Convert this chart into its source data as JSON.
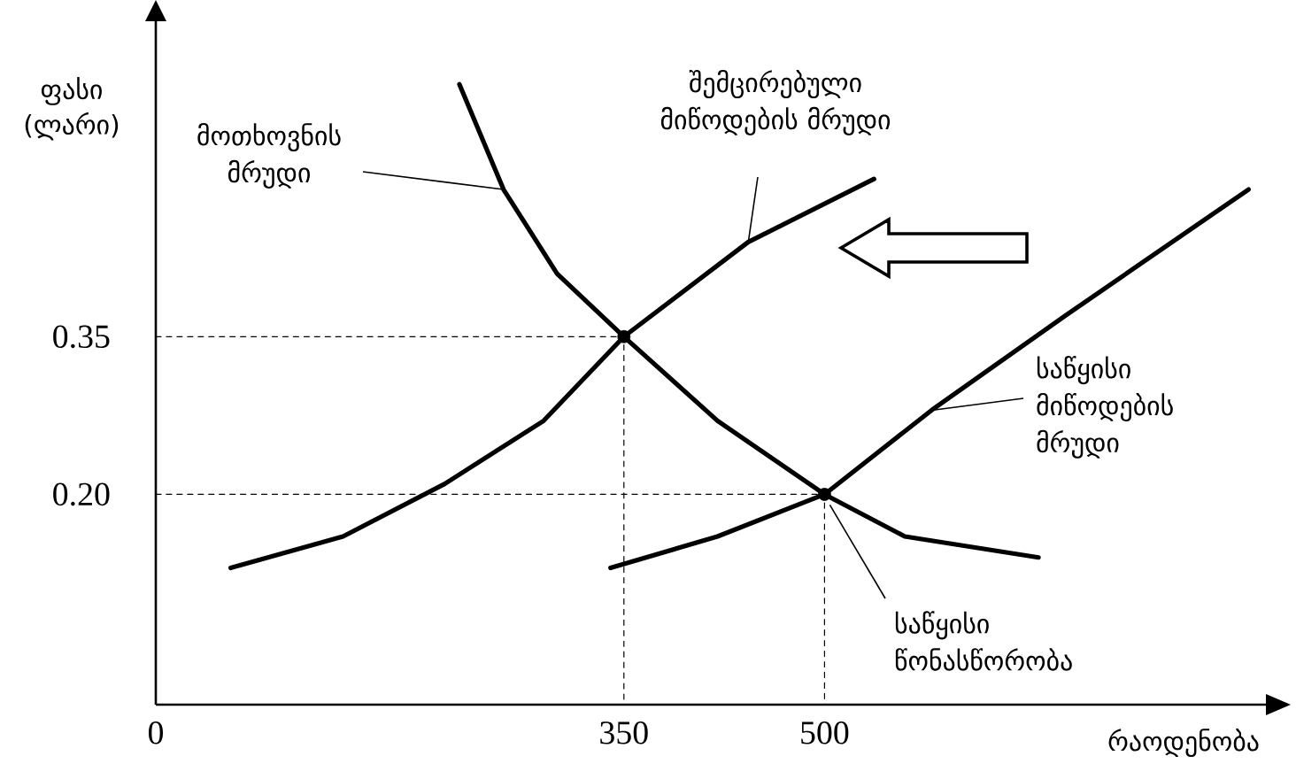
{
  "chart_data": {
    "type": "line",
    "xlabel": "რაოდენობა",
    "ylabel": "ფასი (ლარი)",
    "xlim": [
      0,
      830
    ],
    "ylim": [
      0,
      0.65
    ],
    "xticks": [
      0,
      350,
      500
    ],
    "yticks": [
      {
        "value": 0.2,
        "label": "0.20"
      },
      0.35
    ],
    "marker": "none",
    "series": [
      {
        "name": "მოთხოვნის მრუდი",
        "color": "#000000",
        "x": [
          227,
          260,
          300,
          350,
          420,
          500,
          560,
          660
        ],
        "values": [
          0.59,
          0.49,
          0.41,
          0.35,
          0.27,
          0.2,
          0.16,
          0.14
        ]
      },
      {
        "name": "შემცირებული მიწოდების მრუდი",
        "color": "#000000",
        "x": [
          56,
          140,
          216,
          290,
          350,
          443,
          537
        ],
        "values": [
          0.13,
          0.16,
          0.21,
          0.27,
          0.35,
          0.44,
          0.5
        ]
      },
      {
        "name": "საწყისი მიწოდების მრუდი",
        "color": "#000000",
        "x": [
          340,
          420,
          500,
          580,
          680,
          817
        ],
        "values": [
          0.13,
          0.16,
          0.2,
          0.28,
          0.37,
          0.49
        ]
      },
      {
        "color": "#000000",
        "line_style": "dashed",
        "x": [
          0,
          350,
          350
        ],
        "values": [
          0.35,
          0.35,
          0
        ]
      },
      {
        "color": "#000000",
        "line_style": "dashed",
        "x": [
          0,
          500,
          500
        ],
        "values": [
          0.2,
          0.2,
          0
        ]
      },
      {
        "type": "scatter",
        "marker": "circle",
        "color": "#000000",
        "x": [
          350,
          500
        ],
        "values": [
          0.35,
          0.2
        ]
      }
    ],
    "annotations": [
      {
        "text": "საწყისი წონასწორობა",
        "x": 500,
        "y": 0.2
      }
    ]
  }
}
